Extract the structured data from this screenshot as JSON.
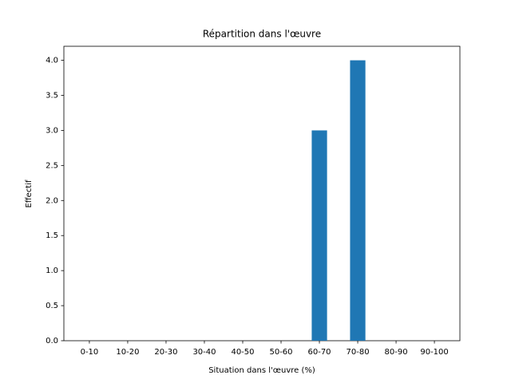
{
  "chart_data": {
    "type": "bar",
    "title": "Répartition dans l'œuvre",
    "xlabel": "Situation dans l'œuvre (%)",
    "ylabel": "Effectif",
    "categories": [
      "0-10",
      "10-20",
      "20-30",
      "30-40",
      "40-50",
      "50-60",
      "60-70",
      "70-80",
      "80-90",
      "90-100"
    ],
    "values": [
      0,
      0,
      0,
      0,
      0,
      0,
      3,
      4,
      0,
      0
    ],
    "color": "#1f77b4",
    "ylim": [
      0,
      4.2
    ],
    "yticks": [
      {
        "value": 0,
        "label": "0.0"
      },
      {
        "value": 0.5,
        "label": "0.5"
      },
      {
        "value": 1,
        "label": "1.0"
      },
      {
        "value": 1.5,
        "label": "1.5"
      },
      {
        "value": 2,
        "label": "2.0"
      },
      {
        "value": 2.5,
        "label": "2.5"
      },
      {
        "value": 3,
        "label": "3.0"
      },
      {
        "value": 3.5,
        "label": "3.5"
      },
      {
        "value": 4,
        "label": "4.0"
      }
    ],
    "grid": false
  }
}
